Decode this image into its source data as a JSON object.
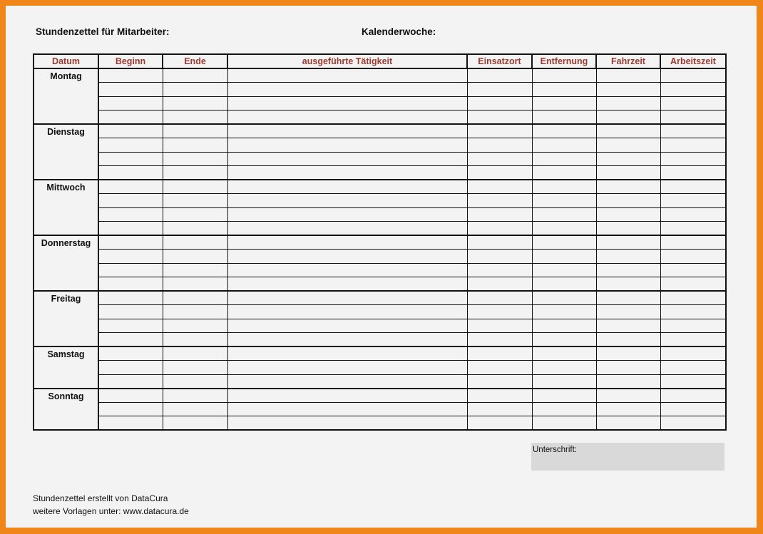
{
  "header": {
    "title": "Stundenzettel für Mitarbeiter:",
    "week_label": "Kalenderwoche:"
  },
  "table": {
    "columns": [
      "Datum",
      "Beginn",
      "Ende",
      "ausgeführte Tätigkeit",
      "Einsatzort",
      "Entfernung",
      "Fahrzeit",
      "Arbeitszeit"
    ],
    "days": [
      {
        "label": "Montag",
        "rows": 4
      },
      {
        "label": "Dienstag",
        "rows": 4
      },
      {
        "label": "Mittwoch",
        "rows": 4
      },
      {
        "label": "Donnerstag",
        "rows": 4
      },
      {
        "label": "Freitag",
        "rows": 4
      },
      {
        "label": "Samstag",
        "rows": 3
      },
      {
        "label": "Sonntag",
        "rows": 3
      }
    ]
  },
  "signature": {
    "label": "Unterschrift:"
  },
  "footer": {
    "line1": "Stundenzettel erstellt von DataCura",
    "line2": "weitere Vorlagen unter: www.datacura.de"
  },
  "colors": {
    "border": "#f0851a",
    "header_text": "#9b3a2e",
    "signature_bg": "#d9d9d9"
  }
}
